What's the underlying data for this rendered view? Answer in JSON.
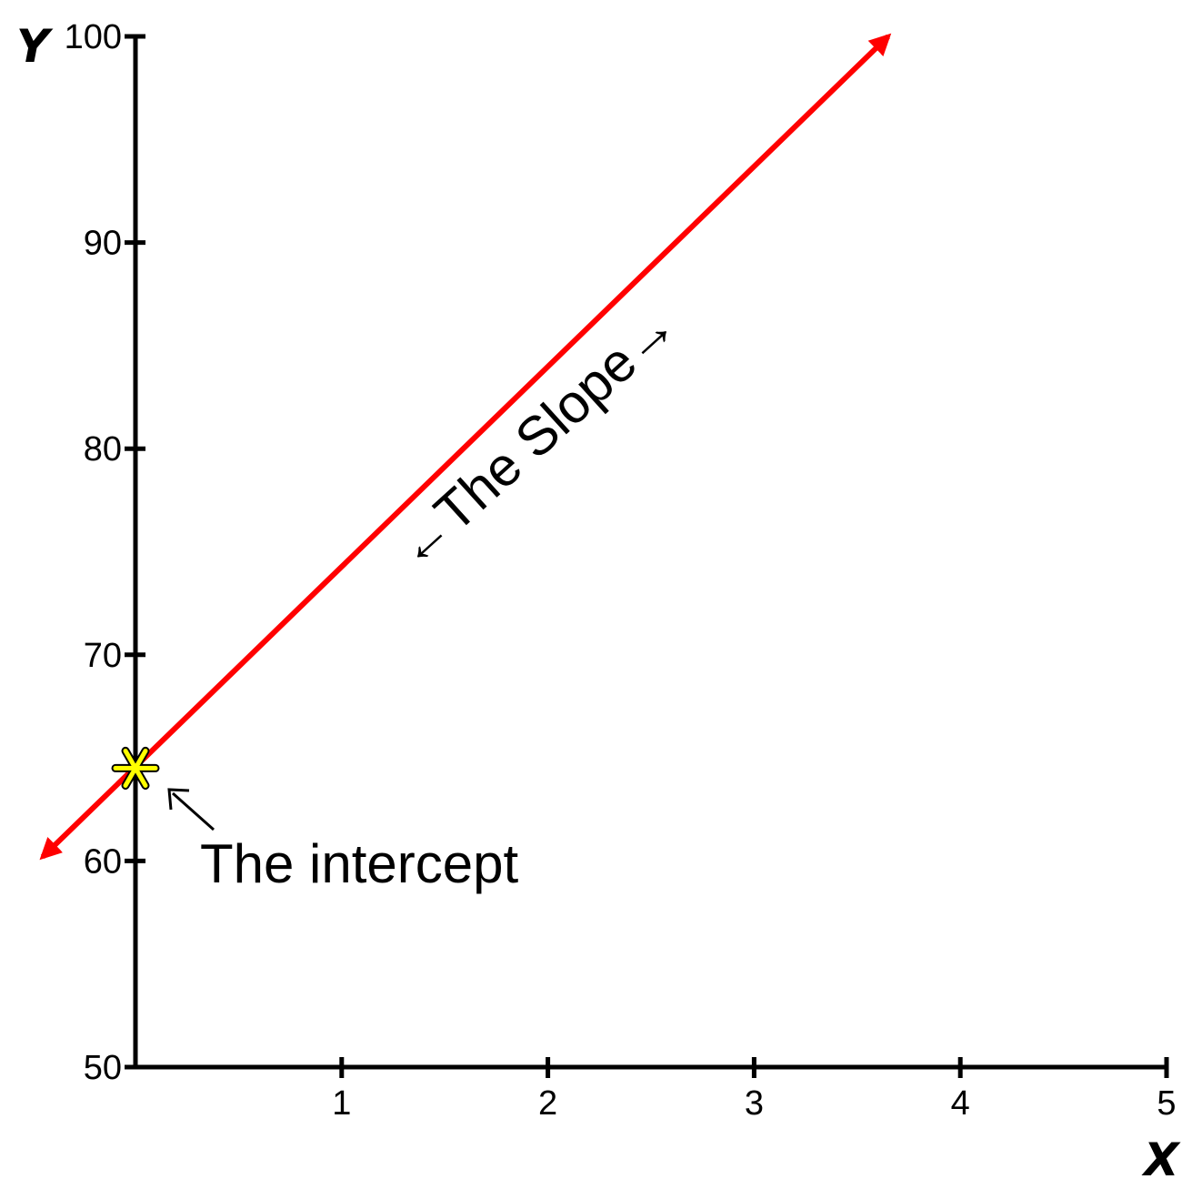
{
  "chart_data": {
    "type": "line",
    "xlabel": "X",
    "ylabel": "Y",
    "xlim": [
      0,
      5
    ],
    "ylim": [
      50,
      100
    ],
    "x_ticks": [
      1,
      2,
      3,
      4,
      5
    ],
    "y_ticks": [
      50,
      60,
      70,
      80,
      90,
      100
    ],
    "grid": false,
    "legend": "none",
    "series": [
      {
        "x": [
          -0.45,
          3.65
        ],
        "y": [
          60.2,
          100.0
        ],
        "color": "#ff0000",
        "arrows": "both"
      }
    ],
    "intercept_marker": {
      "x": 0,
      "y": 64.5,
      "symbol": "asterisk",
      "color": "#ffff00"
    },
    "annotations": {
      "slope": "←The Slope→",
      "intercept": "The intercept"
    }
  }
}
